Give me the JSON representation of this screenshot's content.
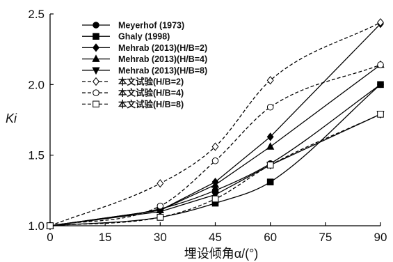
{
  "chart_data": {
    "type": "line",
    "xlabel": "埋设倾角α/(°)",
    "ylabel": "Ki",
    "xlim": [
      0,
      90
    ],
    "ylim": [
      1.0,
      2.5
    ],
    "xticks": [
      "0",
      "15",
      "30",
      "45",
      "60",
      "75",
      "90"
    ],
    "yticks": [
      "1.0",
      "1.5",
      "2.0",
      "2.5"
    ],
    "grid": false,
    "legend_position": "top-left",
    "series": [
      {
        "name": "Meyerhof (1973)",
        "style": "solid",
        "curve": "smooth",
        "marker": "circle-filled",
        "x": [
          0,
          30,
          45,
          60,
          90
        ],
        "y": [
          1.0,
          1.12,
          1.25,
          1.44,
          2.0
        ]
      },
      {
        "name": "Ghaly (1998)",
        "style": "solid",
        "curve": "smooth",
        "marker": "square-filled",
        "x": [
          0,
          30,
          45,
          60,
          90
        ],
        "y": [
          1.0,
          1.06,
          1.16,
          1.31,
          2.0
        ]
      },
      {
        "name": "Mehrab (2013)(H/B=2)",
        "style": "solid",
        "curve": "straight",
        "marker": "diamond-filled",
        "x": [
          0,
          30,
          45,
          60,
          90
        ],
        "y": [
          1.0,
          1.11,
          1.31,
          1.63,
          2.43
        ]
      },
      {
        "name": "Mehrab (2013)(H/B=4)",
        "style": "solid",
        "curve": "straight",
        "marker": "triangle-up-filled",
        "x": [
          0,
          30,
          45,
          60,
          90
        ],
        "y": [
          1.0,
          1.11,
          1.29,
          1.56,
          2.14
        ]
      },
      {
        "name": "Mehrab (2013)(H/B=8)",
        "style": "solid",
        "curve": "straight",
        "marker": "triangle-down-filled",
        "x": [
          0,
          30,
          45,
          60,
          90
        ],
        "y": [
          1.0,
          1.1,
          1.22,
          1.43,
          1.79
        ]
      },
      {
        "name": "本文试验(H/B=2)",
        "style": "dashed",
        "curve": "smooth",
        "marker": "diamond-open",
        "x": [
          0,
          30,
          45,
          60,
          90
        ],
        "y": [
          1.0,
          1.3,
          1.56,
          2.03,
          2.44
        ]
      },
      {
        "name": "本文试验(H/B=4)",
        "style": "dashed",
        "curve": "smooth",
        "marker": "circle-open",
        "x": [
          0,
          30,
          45,
          60,
          90
        ],
        "y": [
          1.0,
          1.14,
          1.46,
          1.84,
          2.14
        ]
      },
      {
        "name": "本文试验(H/B=8)",
        "style": "dashed",
        "curve": "smooth",
        "marker": "square-open",
        "x": [
          0,
          30,
          45,
          60,
          90
        ],
        "y": [
          1.0,
          1.06,
          1.19,
          1.43,
          1.79
        ]
      }
    ]
  }
}
